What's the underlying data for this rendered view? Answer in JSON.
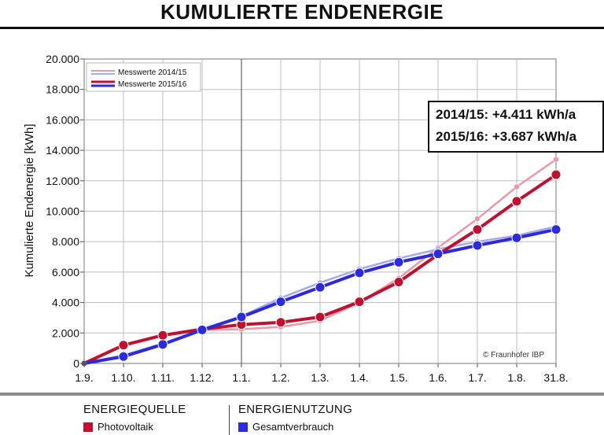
{
  "page": {
    "title": "KUMULIERTE ENDENERGIE",
    "copyright": "© Fraunhofer IBP",
    "annotation": {
      "line1": "2014/15: +4.411 kWh/a",
      "line2": "2015/16: +3.687 kWh/a"
    },
    "footer": {
      "source_header": "ENERGIEQUELLE",
      "source_item": "Photovoltaik",
      "source_color": "#c0102f",
      "use_header": "ENERGIENUTZUNG",
      "use_item": "Gesamtverbrauch",
      "use_color": "#2b2bdd"
    }
  },
  "chart_data": {
    "type": "line",
    "title": "",
    "xlabel": "",
    "ylabel": "Kumulierte Endenergie [kWh]",
    "categories": [
      "1.9.",
      "1.10.",
      "1.11.",
      "1.12.",
      "1.1.",
      "1.2.",
      "1.3.",
      "1.4.",
      "1.5.",
      "1.6.",
      "1.7.",
      "1.8.",
      "31.8."
    ],
    "yticks": [
      "0",
      "2.000",
      "4.000",
      "6.000",
      "8.000",
      "10.000",
      "12.000",
      "14.000",
      "16.000",
      "18.000",
      "20.000"
    ],
    "ylim": [
      0,
      20000
    ],
    "grid": true,
    "legend_position": "top-left",
    "legend": [
      {
        "label": "Messwerte 2014/15"
      },
      {
        "label": "Messwerte 2015/16"
      }
    ],
    "series": [
      {
        "name": "Photovoltaik 2014/15",
        "color": "#e89aa8",
        "values": [
          0,
          1250,
          1800,
          2200,
          2250,
          2400,
          2800,
          4000,
          5600,
          7600,
          9500,
          11600,
          13400
        ]
      },
      {
        "name": "Gesamtverbrauch 2014/15",
        "color": "#a9a9f0",
        "values": [
          0,
          550,
          1300,
          2250,
          3100,
          4300,
          5300,
          6200,
          6900,
          7500,
          8000,
          8400,
          9000
        ]
      },
      {
        "name": "Photovoltaik 2015/16",
        "color": "#c0102f",
        "values": [
          0,
          1200,
          1850,
          2250,
          2550,
          2700,
          3050,
          4050,
          5350,
          7150,
          8800,
          10650,
          12400
        ]
      },
      {
        "name": "Gesamtverbrauch 2015/16",
        "color": "#2b2bdd",
        "values": [
          0,
          450,
          1250,
          2200,
          3050,
          4050,
          5000,
          5950,
          6650,
          7200,
          7750,
          8250,
          8800
        ]
      }
    ]
  }
}
